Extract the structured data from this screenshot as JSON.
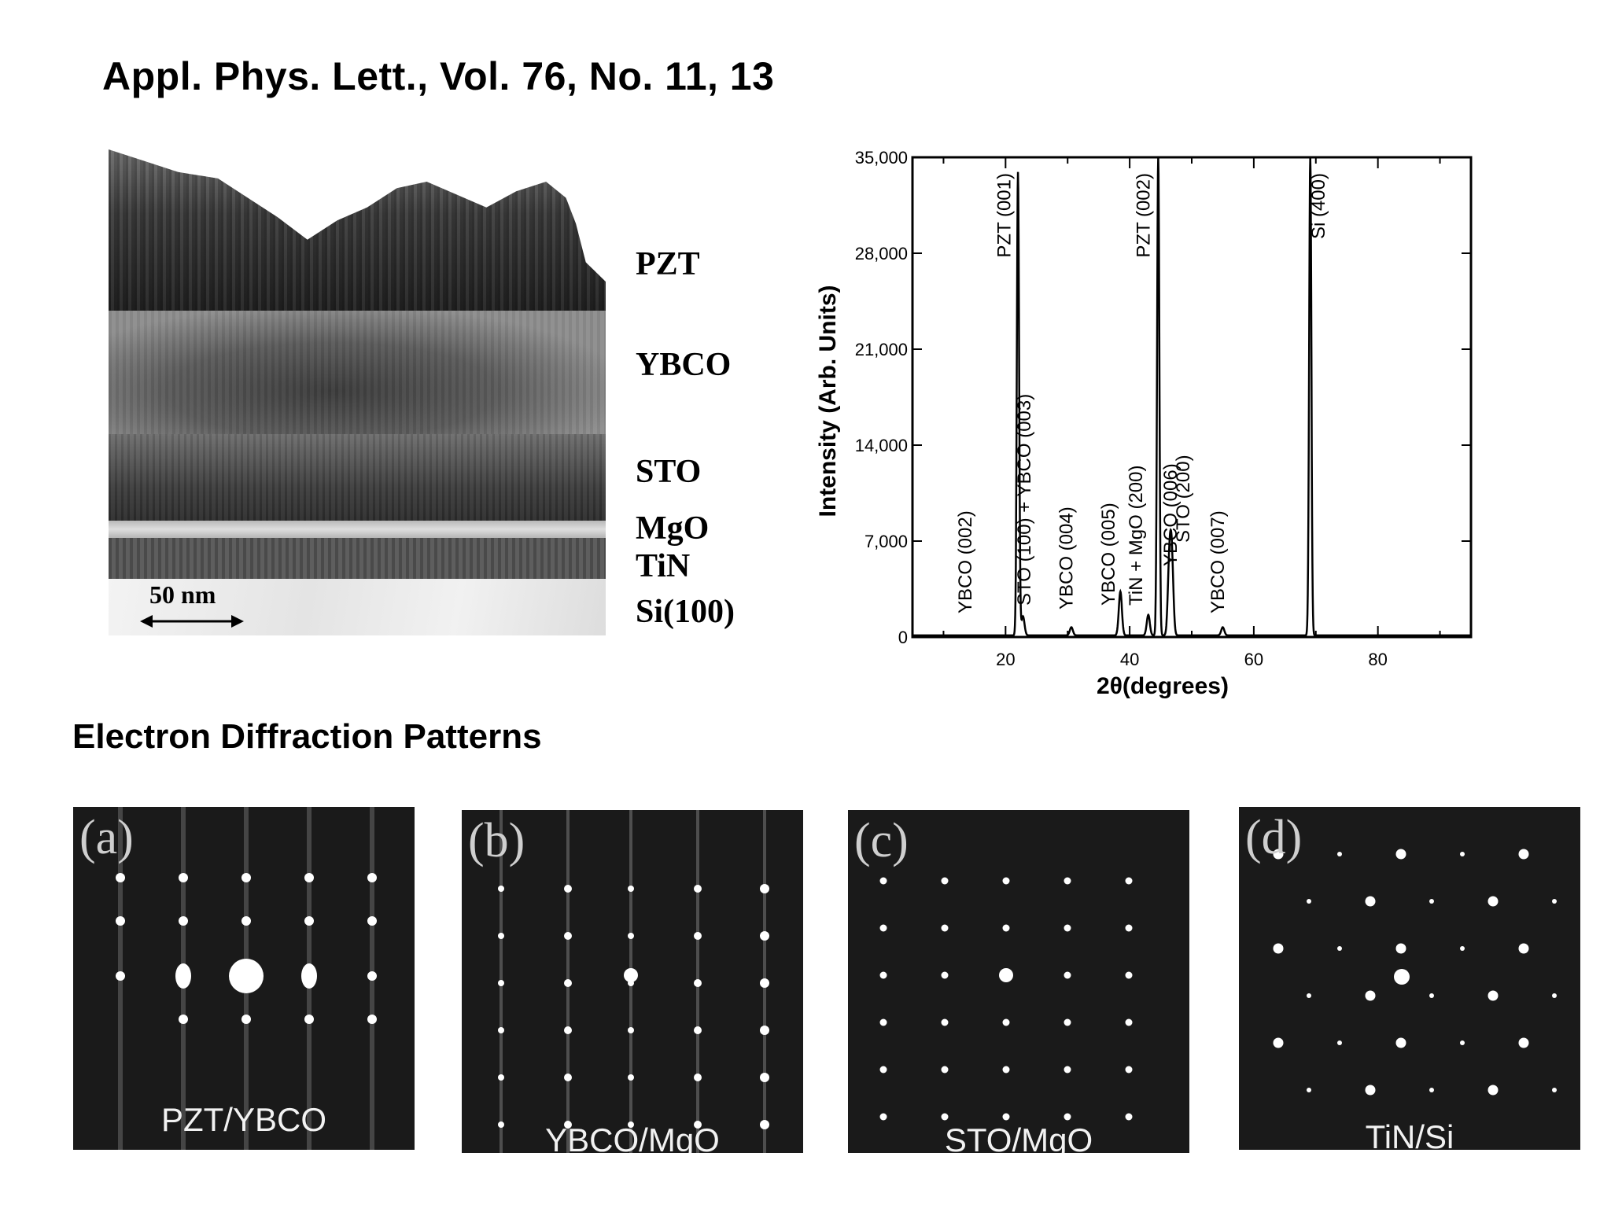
{
  "header": {
    "citation": "Appl. Phys. Lett., Vol. 76, No. 11, 13"
  },
  "tem_image": {
    "layer_labels": [
      "PZT",
      "YBCO",
      "STO",
      "MgO",
      "TiN",
      "Si(100)"
    ],
    "scale_bar": "50 nm"
  },
  "chart_data": {
    "type": "line",
    "xlabel": "2θ(degrees)",
    "ylabel": "Intensity  (Arb.  Units)",
    "xlim": [
      5,
      95
    ],
    "ylim": [
      0,
      35000
    ],
    "x_ticks": [
      "20",
      "40",
      "60",
      "80"
    ],
    "y_ticks": [
      "0",
      "7,000",
      "14,000",
      "21,000",
      "28,000",
      "35,000"
    ],
    "peaks": [
      {
        "x": 22.0,
        "y": 33800
      },
      {
        "x": 22.8,
        "y": 1400
      },
      {
        "x": 30.6,
        "y": 600
      },
      {
        "x": 38.5,
        "y": 3200
      },
      {
        "x": 43.0,
        "y": 1500
      },
      {
        "x": 44.6,
        "y": 35000
      },
      {
        "x": 46.4,
        "y": 5200
      },
      {
        "x": 46.8,
        "y": 5400
      },
      {
        "x": 55.0,
        "y": 600
      },
      {
        "x": 69.1,
        "y": 35000
      }
    ],
    "annotations": [
      {
        "text": "YBCO (002)",
        "x": 14.5
      },
      {
        "text": "PZT (001)",
        "x": 20.8
      },
      {
        "text": "STO (100) + YBCO (003)",
        "x": 24.0
      },
      {
        "text": "YBCO (004)",
        "x": 30.8
      },
      {
        "text": "YBCO (005)",
        "x": 37.6
      },
      {
        "text": "TiN + MgO (200)",
        "x": 42.0
      },
      {
        "text": "PZT (002)",
        "x": 43.2
      },
      {
        "text": "YBCO (006)",
        "x": 47.6
      },
      {
        "text": "STO (200)",
        "x": 49.6
      },
      {
        "text": "YBCO (007)",
        "x": 55.2
      },
      {
        "text": "Si (400)",
        "x": 71.4
      }
    ]
  },
  "diffraction": {
    "heading": "Electron Diffraction Patterns",
    "panels": [
      {
        "letter": "(a)",
        "caption": "PZT/YBCO"
      },
      {
        "letter": "(b)",
        "caption": "YBCO/MgO"
      },
      {
        "letter": "(c)",
        "caption": "STO/MgO"
      },
      {
        "letter": "(d)",
        "caption": "TiN/Si"
      }
    ]
  },
  "colors": {
    "background": "#ffffff",
    "panel_dark": "#1a1a1a",
    "spot": "#ffffff"
  }
}
